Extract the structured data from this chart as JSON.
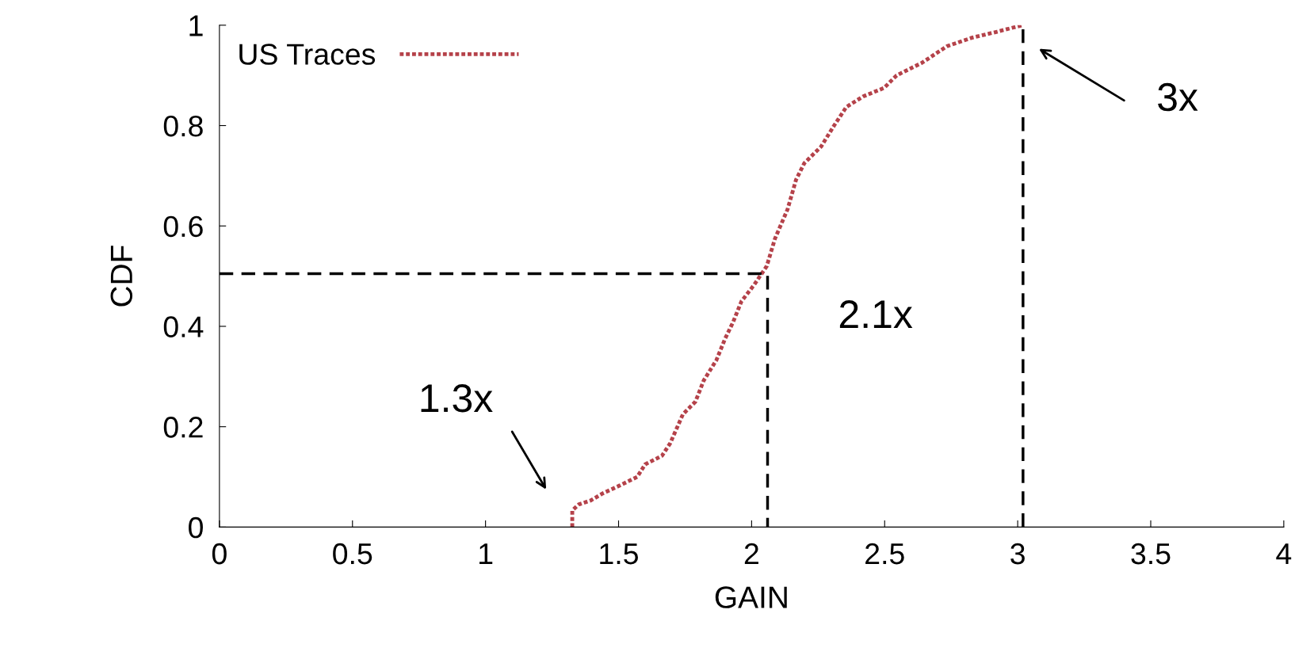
{
  "chart_data": {
    "type": "line",
    "xlabel": "GAIN",
    "ylabel": "CDF",
    "xlim": [
      0,
      4
    ],
    "ylim": [
      0,
      1
    ],
    "xticks": [
      0,
      0.5,
      1,
      1.5,
      2,
      2.5,
      3,
      3.5,
      4
    ],
    "yticks": [
      0,
      0.2,
      0.4,
      0.6,
      0.8,
      1
    ],
    "grid": false,
    "legend": "top left",
    "series": [
      {
        "name": "US Traces",
        "color": "#b5424a",
        "line_style": "dotted",
        "x": [
          1.326,
          1.326,
          1.35,
          1.395,
          1.44,
          1.505,
          1.57,
          1.6,
          1.663,
          1.694,
          1.742,
          1.789,
          1.82,
          1.868,
          1.9,
          1.93,
          1.962,
          2.01,
          2.057,
          2.088,
          2.135,
          2.167,
          2.198,
          2.261,
          2.31,
          2.356,
          2.419,
          2.498,
          2.545,
          2.64,
          2.734,
          2.828,
          2.923,
          3.017
        ],
        "values": [
          0,
          0.033,
          0.045,
          0.053,
          0.067,
          0.083,
          0.1,
          0.125,
          0.142,
          0.167,
          0.225,
          0.25,
          0.292,
          0.333,
          0.375,
          0.408,
          0.45,
          0.483,
          0.52,
          0.575,
          0.633,
          0.692,
          0.725,
          0.758,
          0.8,
          0.837,
          0.858,
          0.875,
          0.9,
          0.925,
          0.958,
          0.975,
          0.987,
          1.0
        ]
      },
      {
        "color": "#000000",
        "line_style": "dashed",
        "x": [
          0,
          2.06,
          2.06
        ],
        "values": [
          0.505,
          0.505,
          0
        ]
      },
      {
        "color": "#000000",
        "line_style": "dashed",
        "x": [
          3.02,
          3.02
        ],
        "values": [
          0,
          1
        ]
      }
    ],
    "annotations": [
      "1.3x",
      {
        "text": "2.1x",
        "x": 2.06,
        "y": 0.505
      },
      "3x"
    ]
  }
}
